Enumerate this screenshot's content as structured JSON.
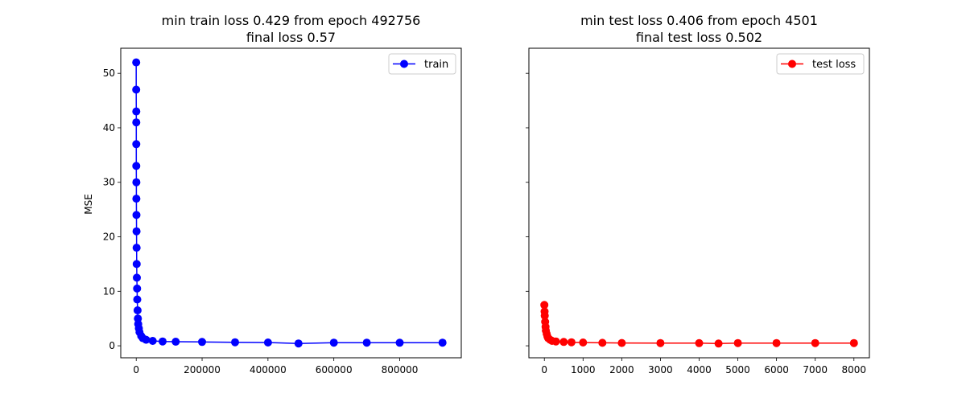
{
  "chart_data": [
    {
      "type": "line",
      "title": "min train loss 0.429 from epoch 492756",
      "subtitle": "final loss 0.57",
      "xlabel": "",
      "ylabel": "MSE",
      "xlim": [
        -47000,
        987000
      ],
      "ylim": [
        -2.2,
        54.6
      ],
      "xticks": [
        0,
        200000,
        400000,
        600000,
        800000
      ],
      "xtick_labels": [
        "0",
        "200000",
        "400000",
        "600000",
        "800000"
      ],
      "yticks": [
        0,
        10,
        20,
        30,
        40,
        50
      ],
      "ytick_labels": [
        "0",
        "10",
        "20",
        "30",
        "40",
        "50"
      ],
      "grid": false,
      "legend": "top-right",
      "series": [
        {
          "name": "train",
          "color": "#0000ff",
          "marker": "circle",
          "x": [
            0,
            50,
            100,
            150,
            200,
            300,
            400,
            500,
            700,
            900,
            1200,
            1500,
            2000,
            2500,
            3000,
            4000,
            5000,
            6000,
            8000,
            10000,
            15000,
            20000,
            30000,
            50000,
            80000,
            120000,
            200000,
            300000,
            400000,
            492756,
            600000,
            700000,
            800000,
            930000
          ],
          "y": [
            52.0,
            47.0,
            43.0,
            41.0,
            37.0,
            33.0,
            30.0,
            27.0,
            24.0,
            21.0,
            18.0,
            15.0,
            12.5,
            10.5,
            8.5,
            6.5,
            5.0,
            4.0,
            3.2,
            2.5,
            1.8,
            1.4,
            1.1,
            0.9,
            0.8,
            0.75,
            0.7,
            0.65,
            0.6,
            0.429,
            0.58,
            0.57,
            0.56,
            0.57
          ]
        }
      ]
    },
    {
      "type": "line",
      "title": "min test loss 0.406 from epoch 4501",
      "subtitle": "final test loss 0.502",
      "xlabel": "",
      "ylabel": "",
      "xlim": [
        -400,
        8400
      ],
      "ylim": [
        -2.2,
        54.6
      ],
      "xticks": [
        0,
        1000,
        2000,
        3000,
        4000,
        5000,
        6000,
        7000,
        8000
      ],
      "xtick_labels": [
        "0",
        "1000",
        "2000",
        "3000",
        "4000",
        "5000",
        "6000",
        "7000",
        "8000"
      ],
      "yticks": [
        0,
        10,
        20,
        30,
        40,
        50
      ],
      "grid": false,
      "legend": "top-right",
      "series": [
        {
          "name": "test loss",
          "color": "#ff0000",
          "marker": "circle",
          "x": [
            0,
            5,
            10,
            20,
            30,
            40,
            60,
            80,
            100,
            150,
            200,
            300,
            500,
            700,
            1000,
            1500,
            2000,
            3000,
            4000,
            4501,
            5000,
            6000,
            7000,
            8000
          ],
          "y": [
            7.5,
            6.3,
            5.5,
            4.4,
            3.5,
            2.8,
            2.2,
            1.7,
            1.4,
            1.1,
            0.9,
            0.8,
            0.7,
            0.65,
            0.6,
            0.55,
            0.52,
            0.5,
            0.48,
            0.406,
            0.5,
            0.5,
            0.5,
            0.502
          ]
        }
      ]
    }
  ]
}
